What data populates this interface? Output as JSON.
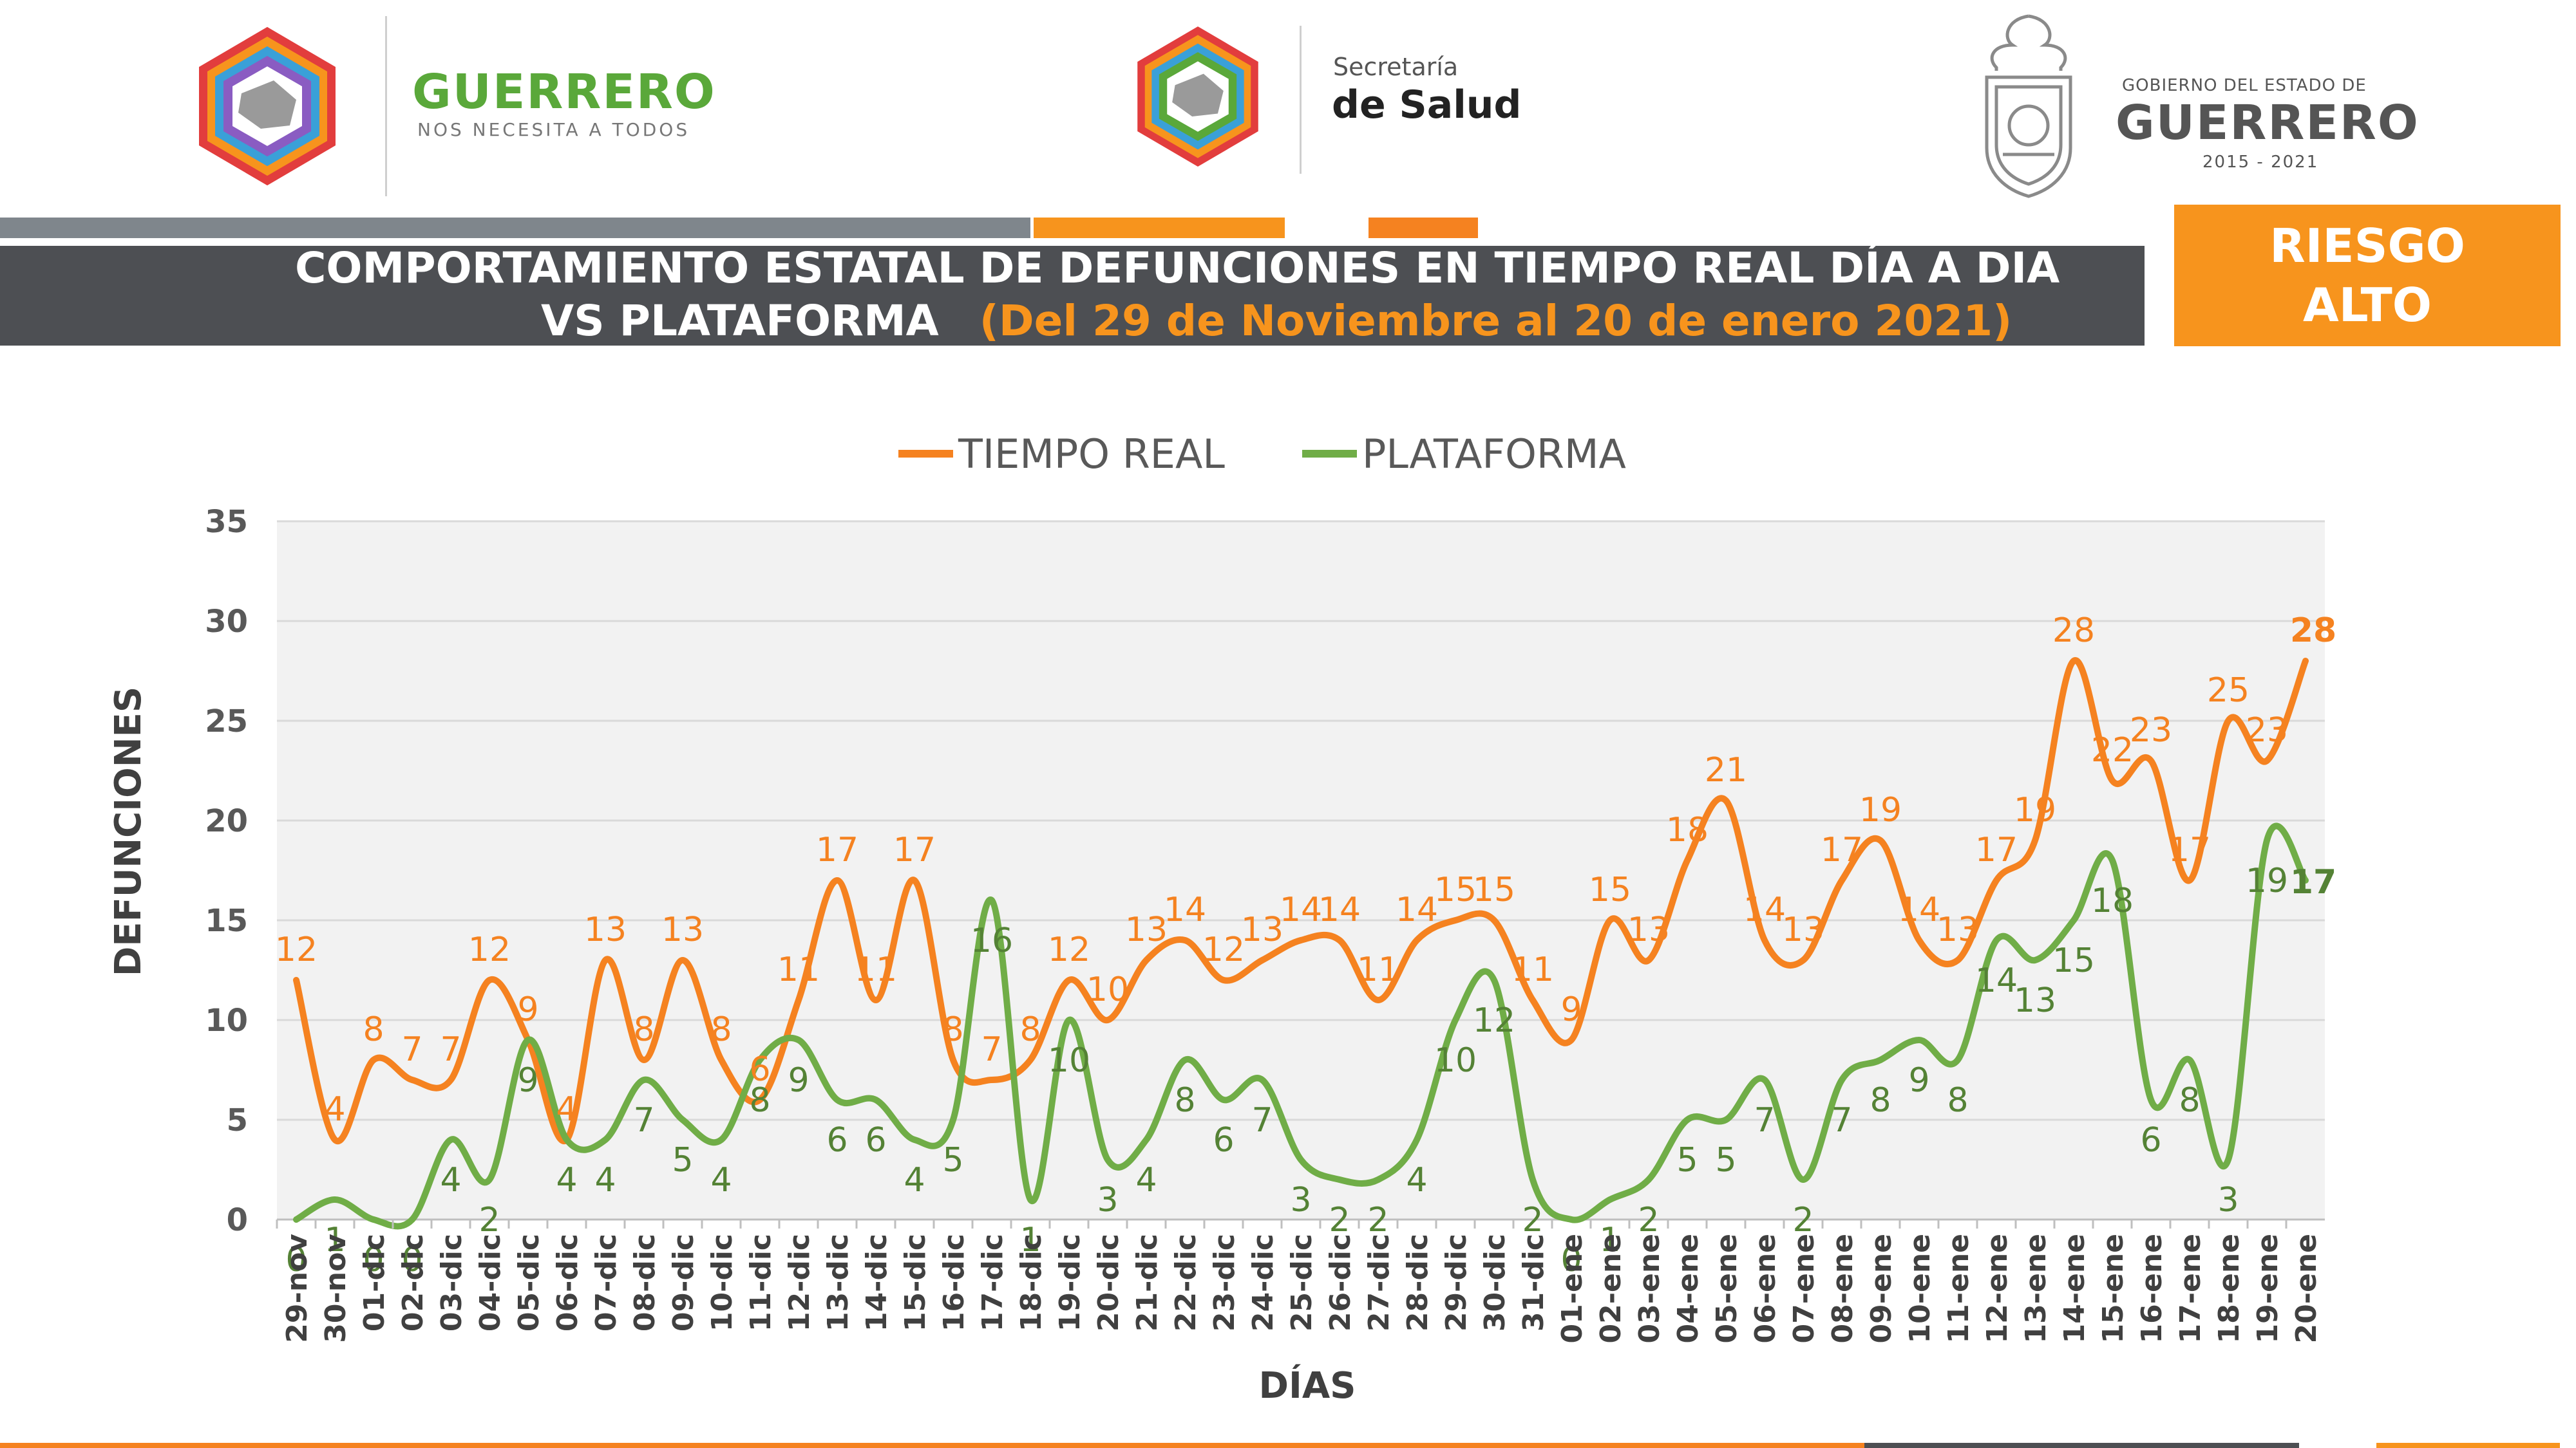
{
  "header": {
    "logo_left": {
      "word": "GUERRERO",
      "tagline": "NOS NECESITA A TODOS"
    },
    "logo_center": {
      "line1": "Secretaría",
      "line2": "de Salud"
    },
    "logo_right": {
      "line1": "GOBIERNO DEL ESTADO DE",
      "line2": "GUERRERO",
      "line3": "2015 - 2021"
    }
  },
  "title": {
    "line1": "COMPORTAMIENTO ESTATAL DE DEFUNCIONES EN TIEMPO REAL DÍA A DIA",
    "line2": "VS PLATAFORMA",
    "range": "(Del 29 de Noviembre al 20 de enero 2021)"
  },
  "risk_badge": {
    "line1": "RIESGO",
    "line2": "ALTO"
  },
  "colors": {
    "orange": "#f7941d",
    "orange_series": "#f58220",
    "green_series": "#70ad47",
    "green_label": "#548235",
    "dark_band": "#4d4f53",
    "grey_stripe": "#7f868c",
    "plot_bg": "#f2f2f2"
  },
  "chart_data": {
    "type": "line",
    "xlabel": "DÍAS",
    "ylabel": "DEFUNCIONES",
    "ylim": [
      0,
      35
    ],
    "yticks": [
      0,
      5,
      10,
      15,
      20,
      25,
      30,
      35
    ],
    "grid": true,
    "legend_position": "top-center",
    "categories": [
      "29-nov",
      "30-nov",
      "01-dic",
      "02-dic",
      "03-dic",
      "04-dic",
      "05-dic",
      "06-dic",
      "07-dic",
      "08-dic",
      "09-dic",
      "10-dic",
      "11-dic",
      "12-dic",
      "13-dic",
      "14-dic",
      "15-dic",
      "16-dic",
      "17-dic",
      "18-dic",
      "19-dic",
      "20-dic",
      "21-dic",
      "22-dic",
      "23-dic",
      "24-dic",
      "25-dic",
      "26-dic",
      "27-dic",
      "28-dic",
      "29-dic",
      "30-dic",
      "31-dic",
      "01-ene",
      "02-ene",
      "03-ene",
      "04-ene",
      "05-ene",
      "06-ene",
      "07-ene",
      "08-ene",
      "09-ene",
      "10-ene",
      "11-ene",
      "12-ene",
      "13-ene",
      "14-ene",
      "15-ene",
      "16-ene",
      "17-ene",
      "18-ene",
      "19-ene",
      "20-ene"
    ],
    "series": [
      {
        "name": "TIEMPO REAL",
        "color": "#f58220",
        "values": [
          12,
          4,
          8,
          7,
          7,
          12,
          9,
          4,
          13,
          8,
          13,
          8,
          6,
          11,
          17,
          11,
          17,
          8,
          7,
          8,
          12,
          10,
          13,
          14,
          12,
          13,
          14,
          14,
          11,
          14,
          15,
          15,
          11,
          9,
          15,
          13,
          18,
          21,
          14,
          13,
          17,
          19,
          14,
          13,
          17,
          19,
          28,
          22,
          23,
          17,
          25,
          23,
          28
        ]
      },
      {
        "name": "PLATAFORMA",
        "color": "#70ad47",
        "values": [
          0,
          1,
          0,
          0,
          4,
          2,
          9,
          4,
          4,
          7,
          5,
          4,
          8,
          9,
          6,
          6,
          4,
          5,
          16,
          1,
          10,
          3,
          4,
          8,
          6,
          7,
          3,
          2,
          2,
          4,
          10,
          12,
          2,
          0,
          1,
          2,
          5,
          5,
          7,
          2,
          7,
          8,
          9,
          8,
          14,
          13,
          15,
          18,
          6,
          8,
          3,
          19,
          17
        ]
      }
    ]
  }
}
